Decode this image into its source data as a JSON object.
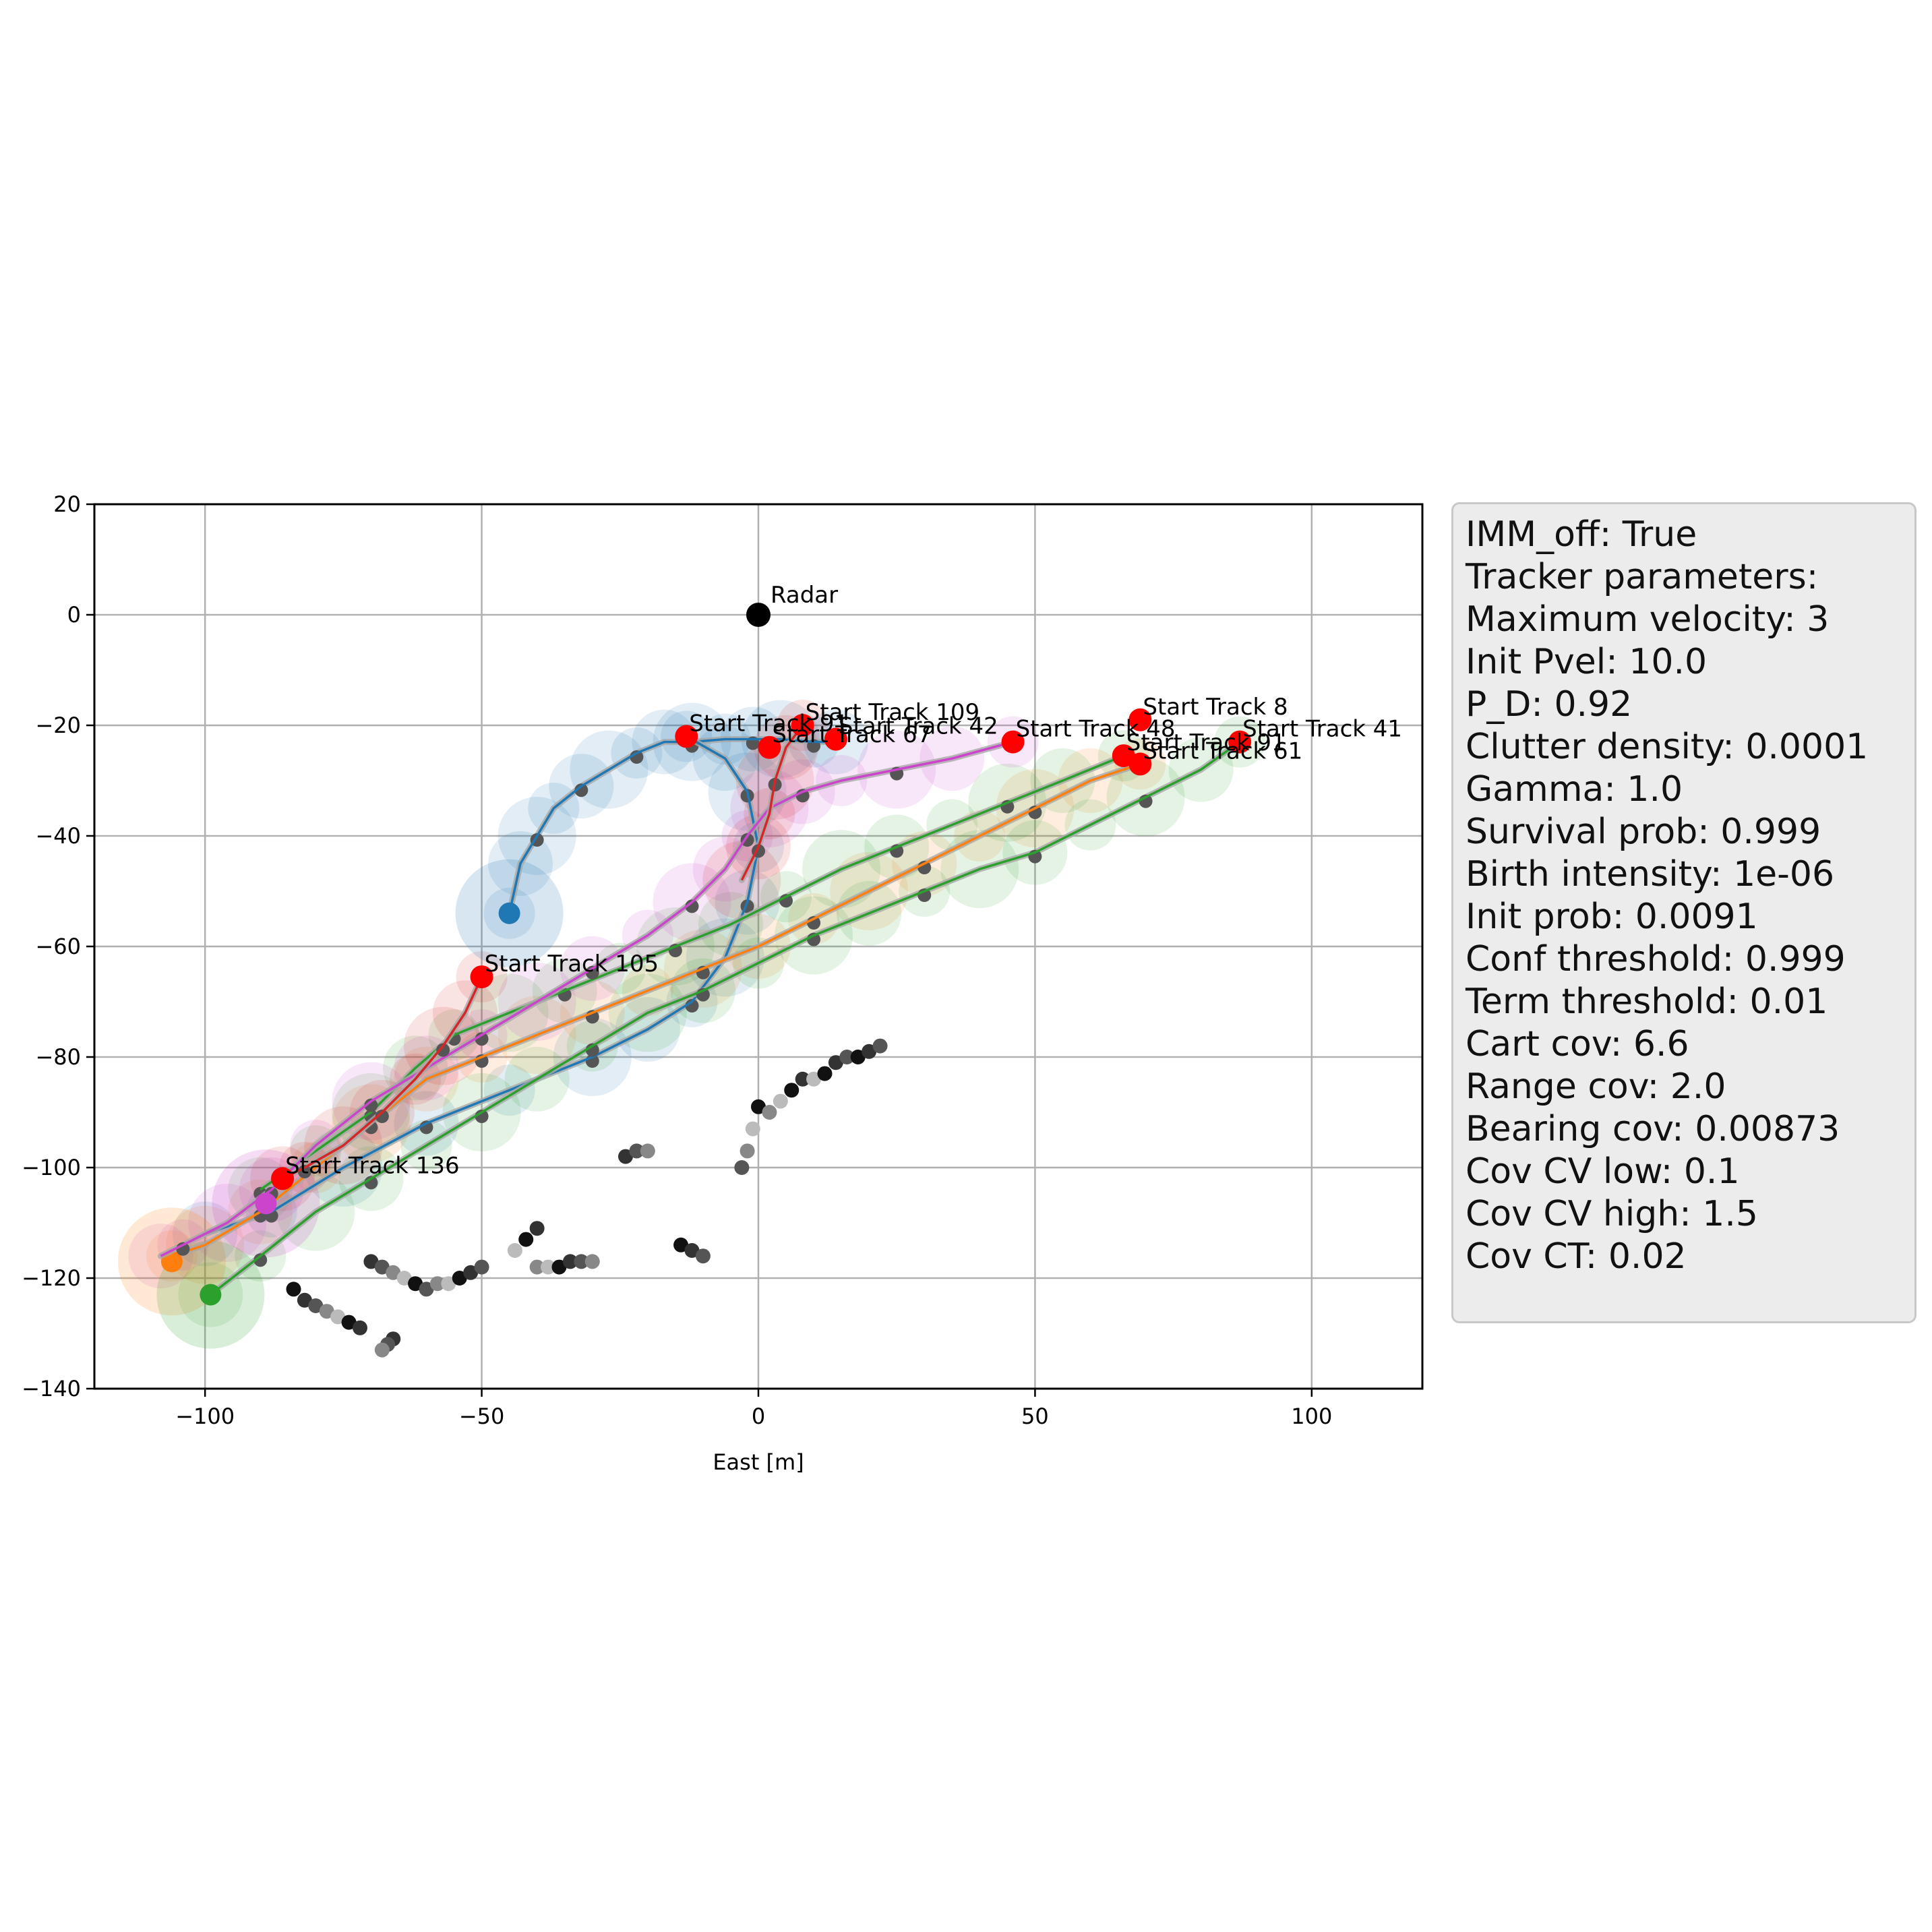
{
  "chart_data": {
    "type": "scatter",
    "title": "",
    "xlabel": "East [m]",
    "ylabel": "",
    "xlim": [
      -120,
      120
    ],
    "ylim": [
      -140,
      20
    ],
    "xticks": [
      -100,
      -50,
      0,
      50,
      100
    ],
    "yticks": [
      -140,
      -120,
      -100,
      -80,
      -60,
      -40,
      -20,
      0,
      20
    ],
    "xtick_labels": [
      "−100",
      "−50",
      "0",
      "50",
      "100"
    ],
    "ytick_labels": [
      "−140",
      "−120",
      "−100",
      "−80",
      "−60",
      "−40",
      "−20",
      "0",
      "20"
    ],
    "grid": true,
    "colors": {
      "blue": "#1f77b4",
      "orange": "#ff7f0e",
      "green": "#2ca02c",
      "red": "#d62728",
      "magenta": "#cc44cc",
      "start_marker": "#ff0000",
      "radar": "#000000",
      "gray_track": "#a8a8a8",
      "gray_meas": "#555555"
    },
    "radar": {
      "label": "Radar",
      "x": 0,
      "y": 0
    },
    "start_tracks": [
      {
        "label": "Start Track 8",
        "x": 69,
        "y": -19
      },
      {
        "label": "Start Track 41",
        "x": 87,
        "y": -23
      },
      {
        "label": "Start Track 91",
        "x": 66,
        "y": -25.5
      },
      {
        "label": "Start Track 61",
        "x": 69,
        "y": -27
      },
      {
        "label": "Start Track 48",
        "x": 46,
        "y": -23
      },
      {
        "label": "Start Track 109",
        "x": 8,
        "y": -20
      },
      {
        "label": "Start Track 42",
        "x": 14,
        "y": -22.5
      },
      {
        "label": "Start Track 67",
        "x": 2,
        "y": -24
      },
      {
        "label": "Start Track 91",
        "x": -13,
        "y": -22
      },
      {
        "label": "Start Track 105",
        "x": -50,
        "y": -65.5
      },
      {
        "label": "Start Track 136",
        "x": -86,
        "y": -102
      }
    ],
    "tracks": [
      {
        "color": "blue",
        "points": [
          [
            -45,
            -54
          ],
          [
            -43,
            -45
          ],
          [
            -40,
            -40
          ],
          [
            -37,
            -35
          ],
          [
            -32,
            -31
          ],
          [
            -27,
            -28
          ],
          [
            -22,
            -25
          ],
          [
            -17,
            -23
          ],
          [
            -12,
            -23
          ],
          [
            -6,
            -22.5
          ],
          [
            -1,
            -22.5
          ],
          [
            4,
            -22.5
          ],
          [
            10,
            -23
          ],
          [
            14,
            -23
          ]
        ],
        "end": [
          -45,
          -54
        ]
      },
      {
        "color": "blue",
        "points": [
          [
            -13,
            -22
          ],
          [
            -6,
            -26
          ],
          [
            -2,
            -32
          ],
          [
            0,
            -42
          ],
          [
            -2,
            -52
          ],
          [
            -6,
            -62
          ],
          [
            -12,
            -70
          ],
          [
            -20,
            -75
          ],
          [
            -30,
            -80
          ],
          [
            -45,
            -86
          ],
          [
            -60,
            -92
          ],
          [
            -75,
            -100
          ],
          [
            -88,
            -108
          ],
          [
            -100,
            -112
          ]
        ]
      },
      {
        "color": "orange",
        "points": [
          [
            69,
            -27
          ],
          [
            60,
            -30
          ],
          [
            50,
            -35
          ],
          [
            40,
            -40
          ],
          [
            30,
            -45
          ],
          [
            20,
            -50
          ],
          [
            10,
            -55
          ],
          [
            0,
            -60
          ],
          [
            -10,
            -64
          ],
          [
            -20,
            -68
          ],
          [
            -30,
            -72
          ],
          [
            -40,
            -76
          ],
          [
            -50,
            -80
          ],
          [
            -60,
            -84
          ],
          [
            -70,
            -92
          ],
          [
            -80,
            -100
          ],
          [
            -90,
            -108
          ],
          [
            -100,
            -114
          ],
          [
            -106,
            -116
          ]
        ],
        "end": [
          -106,
          -117
        ]
      },
      {
        "color": "green",
        "points": [
          [
            87,
            -23
          ],
          [
            80,
            -28
          ],
          [
            70,
            -33
          ],
          [
            60,
            -38
          ],
          [
            50,
            -43
          ],
          [
            40,
            -46
          ],
          [
            30,
            -50
          ],
          [
            20,
            -54
          ],
          [
            10,
            -58
          ],
          [
            0,
            -63
          ],
          [
            -10,
            -68
          ],
          [
            -20,
            -72
          ],
          [
            -30,
            -78
          ],
          [
            -40,
            -84
          ],
          [
            -50,
            -90
          ],
          [
            -60,
            -96
          ],
          [
            -70,
            -102
          ],
          [
            -80,
            -108
          ],
          [
            -90,
            -116
          ],
          [
            -99,
            -123
          ]
        ],
        "end": [
          -99,
          -123
        ]
      },
      {
        "color": "green",
        "points": [
          [
            66,
            -25.5
          ],
          [
            55,
            -30
          ],
          [
            45,
            -34
          ],
          [
            35,
            -38
          ],
          [
            25,
            -42
          ],
          [
            15,
            -46
          ],
          [
            5,
            -51
          ],
          [
            -5,
            -56
          ],
          [
            -15,
            -60
          ],
          [
            -25,
            -64
          ],
          [
            -35,
            -68
          ],
          [
            -45,
            -72
          ],
          [
            -55,
            -76
          ],
          [
            -62,
            -82
          ],
          [
            -70,
            -90
          ],
          [
            -80,
            -97
          ],
          [
            -90,
            -104
          ]
        ]
      },
      {
        "color": "magenta",
        "points": [
          [
            46,
            -23
          ],
          [
            35,
            -26
          ],
          [
            25,
            -28
          ],
          [
            15,
            -30
          ],
          [
            8,
            -32
          ],
          [
            2,
            -35
          ],
          [
            -2,
            -40
          ],
          [
            -6,
            -46
          ],
          [
            -12,
            -52
          ],
          [
            -20,
            -58
          ],
          [
            -30,
            -64
          ],
          [
            -40,
            -70
          ],
          [
            -50,
            -76
          ],
          [
            -60,
            -82
          ],
          [
            -70,
            -88
          ],
          [
            -80,
            -96
          ],
          [
            -88,
            -104
          ],
          [
            -96,
            -110
          ],
          [
            -104,
            -114
          ],
          [
            -108,
            -116
          ]
        ],
        "end": [
          -89,
          -106.5
        ]
      },
      {
        "color": "red",
        "points": [
          [
            8,
            -20
          ],
          [
            5,
            -24
          ],
          [
            3,
            -30
          ],
          [
            2,
            -36
          ],
          [
            0,
            -42
          ],
          [
            -3,
            -48
          ]
        ]
      },
      {
        "color": "red",
        "points": [
          [
            -50,
            -65.5
          ],
          [
            -53,
            -72
          ],
          [
            -57,
            -78
          ],
          [
            -62,
            -84
          ],
          [
            -68,
            -90
          ],
          [
            -75,
            -96
          ],
          [
            -82,
            -100
          ],
          [
            -86,
            -102
          ]
        ]
      }
    ],
    "clutter_clusters": [
      {
        "x": [
          -84,
          -82,
          -80,
          -78,
          -76,
          -74,
          -72
        ],
        "y": [
          -122,
          -124,
          -125,
          -126,
          -127,
          -128,
          -129
        ]
      },
      {
        "x": [
          -70,
          -68,
          -66,
          -64,
          -62
        ],
        "y": [
          -117,
          -118,
          -119,
          -120,
          -121
        ]
      },
      {
        "x": [
          -60,
          -58,
          -56,
          -54,
          -52,
          -50
        ],
        "y": [
          -122,
          -121,
          -121,
          -120,
          -119,
          -118
        ]
      },
      {
        "x": [
          -40,
          -38,
          -36,
          -34,
          -32,
          -30
        ],
        "y": [
          -118,
          -118,
          -118,
          -117,
          -117,
          -117
        ]
      },
      {
        "x": [
          -44,
          -42,
          -40
        ],
        "y": [
          -115,
          -113,
          -111
        ]
      },
      {
        "x": [
          -14,
          -12,
          -10
        ],
        "y": [
          -114,
          -115,
          -116
        ]
      },
      {
        "x": [
          -24,
          -22,
          -20
        ],
        "y": [
          -98,
          -97,
          -97
        ]
      },
      {
        "x": [
          -3,
          -2,
          -1,
          0
        ],
        "y": [
          -100,
          -97,
          -93,
          -89
        ]
      },
      {
        "x": [
          2,
          4,
          6,
          8
        ],
        "y": [
          -90,
          -88,
          -86,
          -84
        ]
      },
      {
        "x": [
          10,
          12,
          14,
          16
        ],
        "y": [
          -84,
          -83,
          -81,
          -80
        ]
      },
      {
        "x": [
          18,
          20,
          22
        ],
        "y": [
          -80,
          -79,
          -78
        ]
      },
      {
        "x": [
          -66,
          -67,
          -68
        ],
        "y": [
          -131,
          -132,
          -133
        ]
      }
    ]
  },
  "parameters": {
    "lines": [
      "IMM_off: True",
      "Tracker parameters:",
      "Maximum velocity: 3",
      "Init Pvel: 10.0",
      "P_D: 0.92",
      "Clutter density: 0.0001",
      "Gamma: 1.0",
      "Survival prob: 0.999",
      "Birth intensity: 1e-06",
      "Init prob: 0.0091",
      "Conf threshold: 0.999",
      "Term threshold: 0.01",
      "Cart cov: 6.6",
      "Range cov: 2.0",
      "Bearing cov: 0.00873",
      "Cov CV low: 0.1",
      "Cov CV high: 1.5",
      "Cov CT: 0.02"
    ]
  }
}
